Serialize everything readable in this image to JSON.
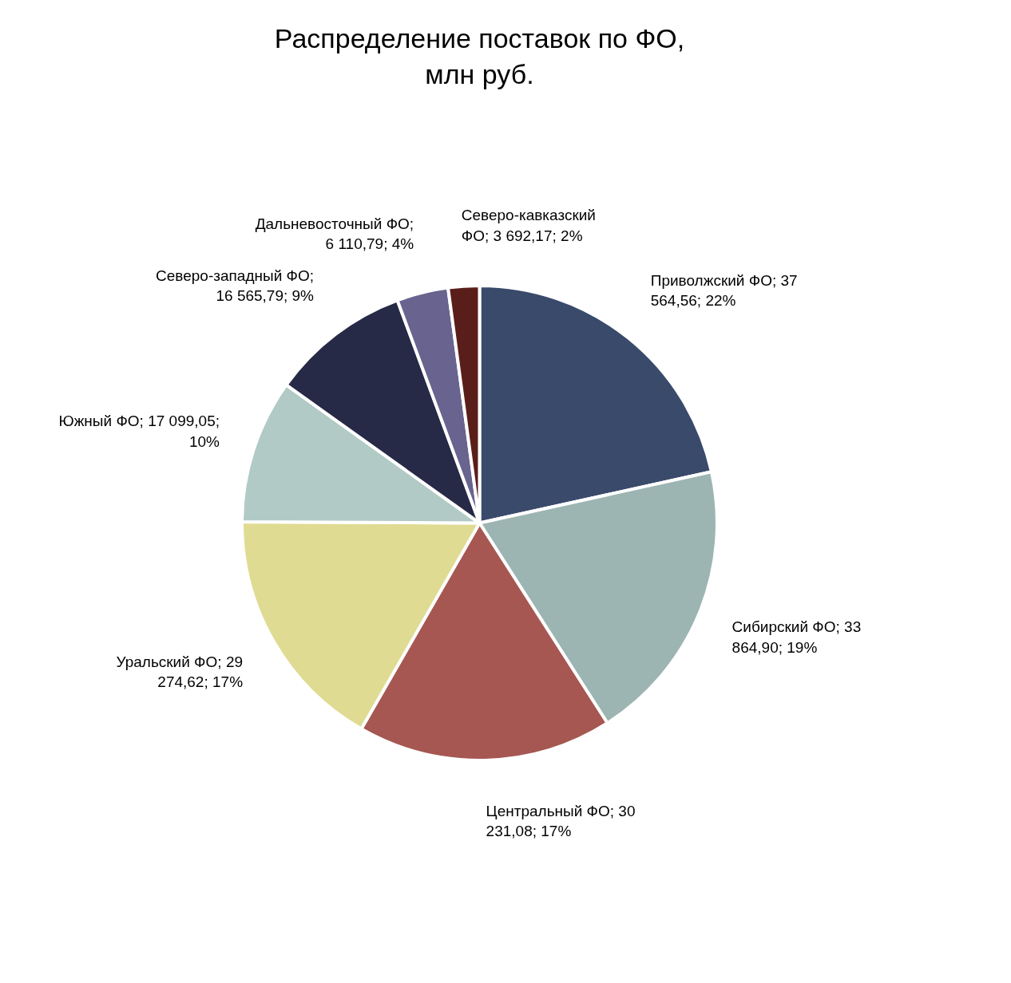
{
  "chart_data": {
    "type": "pie",
    "title": "Распределение поставок по ФО, млн руб.",
    "categories": [
      "Приволжский ФО; 37 564,56; 22%",
      "Сибирский ФО; 33 864,90; 19%",
      "Центральный ФО; 30 231,08; 17%",
      "Уральский ФО; 29 274,62; 17%",
      "Южный ФО; 17 099,05; 10%",
      "Северо-западный ФО; 16 565,79; 9%",
      "Дальневосточный ФО; 6 110,79; 4%",
      "Северо-кавказский ФО; 3 692,17; 2%"
    ],
    "values": [
      37564.56,
      33864.9,
      30231.08,
      29274.62,
      17099.05,
      16565.79,
      6110.79,
      3692.17
    ],
    "colors": [
      "#3a4a6b",
      "#9db5b2",
      "#a65752",
      "#e0db92",
      "#b1cac6",
      "#262a47",
      "#69638f",
      "#5a1e1a"
    ],
    "legend": false
  }
}
